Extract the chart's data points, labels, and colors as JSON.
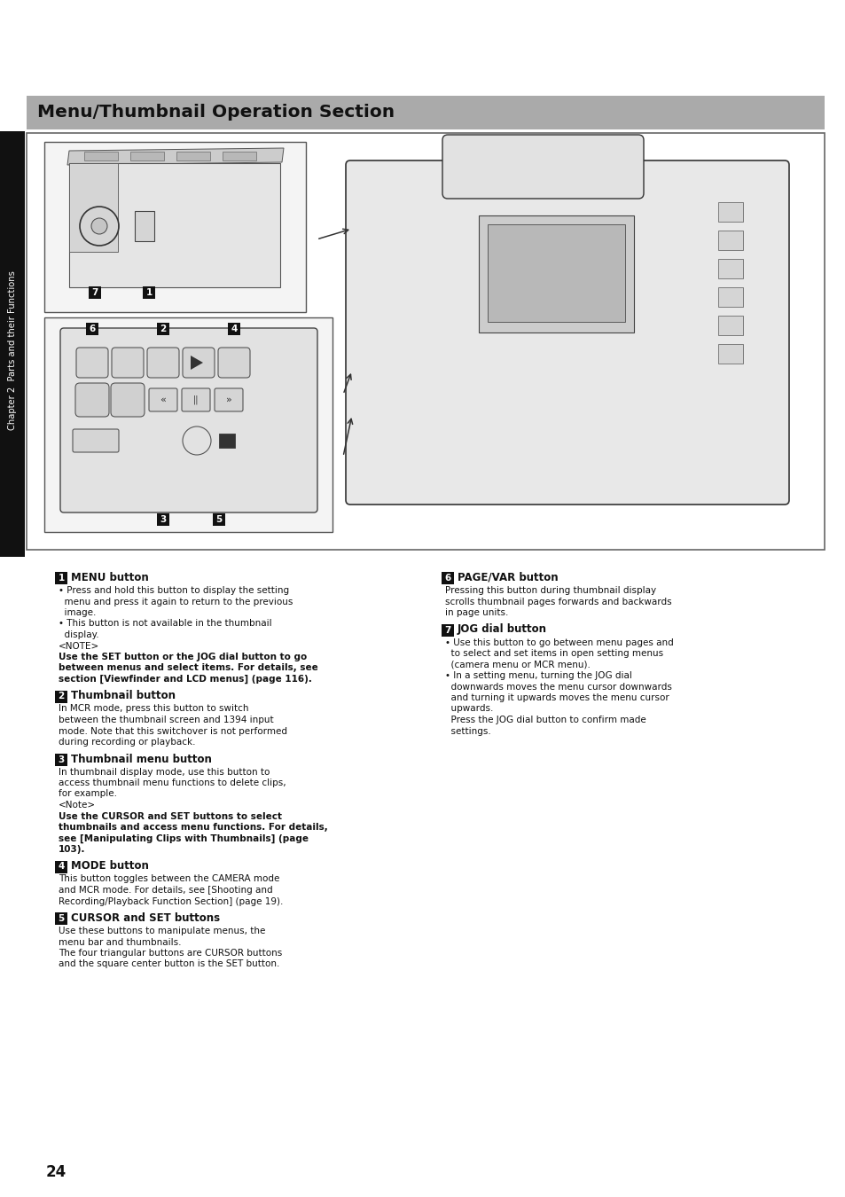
{
  "page_bg": "#ffffff",
  "header_bg": "#aaaaaa",
  "header_text": "Menu/Thumbnail Operation Section",
  "header_text_color": "#111111",
  "sidebar_bg": "#111111",
  "sidebar_text": "Chapter 2  Parts and their Functions",
  "page_number": "24",
  "sections_left": [
    {
      "num": "1",
      "title": "MENU button",
      "lines": [
        {
          "text": "• Press and hold this button to display the setting",
          "bold": false
        },
        {
          "text": "  menu and press it again to return to the previous",
          "bold": false
        },
        {
          "text": "  image.",
          "bold": false
        },
        {
          "text": "• This button is not available in the thumbnail",
          "bold": false
        },
        {
          "text": "  display.",
          "bold": false
        },
        {
          "text": "<NOTE>",
          "bold": false
        },
        {
          "text": "Use the SET button or the JOG dial button to go",
          "bold": true
        },
        {
          "text": "between menus and select items. For details, see",
          "bold": true
        },
        {
          "text": "section [Viewfinder and LCD menus] (page 116).",
          "bold": true
        }
      ]
    },
    {
      "num": "2",
      "title": "Thumbnail button",
      "lines": [
        {
          "text": "In MCR mode, press this button to switch",
          "bold": false
        },
        {
          "text": "between the thumbnail screen and 1394 input",
          "bold": false
        },
        {
          "text": "mode. Note that this switchover is not performed",
          "bold": false
        },
        {
          "text": "during recording or playback.",
          "bold": false
        }
      ]
    },
    {
      "num": "3",
      "title": "Thumbnail menu button",
      "lines": [
        {
          "text": "In thumbnail display mode, use this button to",
          "bold": false
        },
        {
          "text": "access thumbnail menu functions to delete clips,",
          "bold": false
        },
        {
          "text": "for example.",
          "bold": false
        },
        {
          "text": "<Note>",
          "bold": false
        },
        {
          "text": "Use the CURSOR and SET buttons to select",
          "bold": true
        },
        {
          "text": "thumbnails and access menu functions. For details,",
          "bold": true
        },
        {
          "text": "see [Manipulating Clips with Thumbnails] (page",
          "bold": true
        },
        {
          "text": "103).",
          "bold": true
        }
      ]
    },
    {
      "num": "4",
      "title": "MODE button",
      "lines": [
        {
          "text": "This button toggles between the CAMERA mode",
          "bold": false
        },
        {
          "text": "and MCR mode. For details, see [Shooting and",
          "bold": false
        },
        {
          "text": "Recording/Playback Function Section] (page 19).",
          "bold": false
        }
      ]
    },
    {
      "num": "5",
      "title": "CURSOR and SET buttons",
      "lines": [
        {
          "text": "Use these buttons to manipulate menus, the",
          "bold": false
        },
        {
          "text": "menu bar and thumbnails.",
          "bold": false
        },
        {
          "text": "The four triangular buttons are CURSOR buttons",
          "bold": false
        },
        {
          "text": "and the square center button is the SET button.",
          "bold": false
        }
      ]
    }
  ],
  "sections_right": [
    {
      "num": "6",
      "title": "PAGE/VAR button",
      "lines": [
        {
          "text": "Pressing this button during thumbnail display",
          "bold": false
        },
        {
          "text": "scrolls thumbnail pages forwards and backwards",
          "bold": false
        },
        {
          "text": "in page units.",
          "bold": false
        }
      ]
    },
    {
      "num": "7",
      "title": "JOG dial button",
      "lines": [
        {
          "text": "• Use this button to go between menu pages and",
          "bold": false
        },
        {
          "text": "  to select and set items in open setting menus",
          "bold": false
        },
        {
          "text": "  (camera menu or MCR menu).",
          "bold": false
        },
        {
          "text": "• In a setting menu, turning the JOG dial",
          "bold": false
        },
        {
          "text": "  downwards moves the menu cursor downwards",
          "bold": false
        },
        {
          "text": "  and turning it upwards moves the menu cursor",
          "bold": false
        },
        {
          "text": "  upwards.",
          "bold": false
        },
        {
          "text": "  Press the JOG dial button to confirm made",
          "bold": false
        },
        {
          "text": "  settings.",
          "bold": false
        }
      ]
    }
  ]
}
